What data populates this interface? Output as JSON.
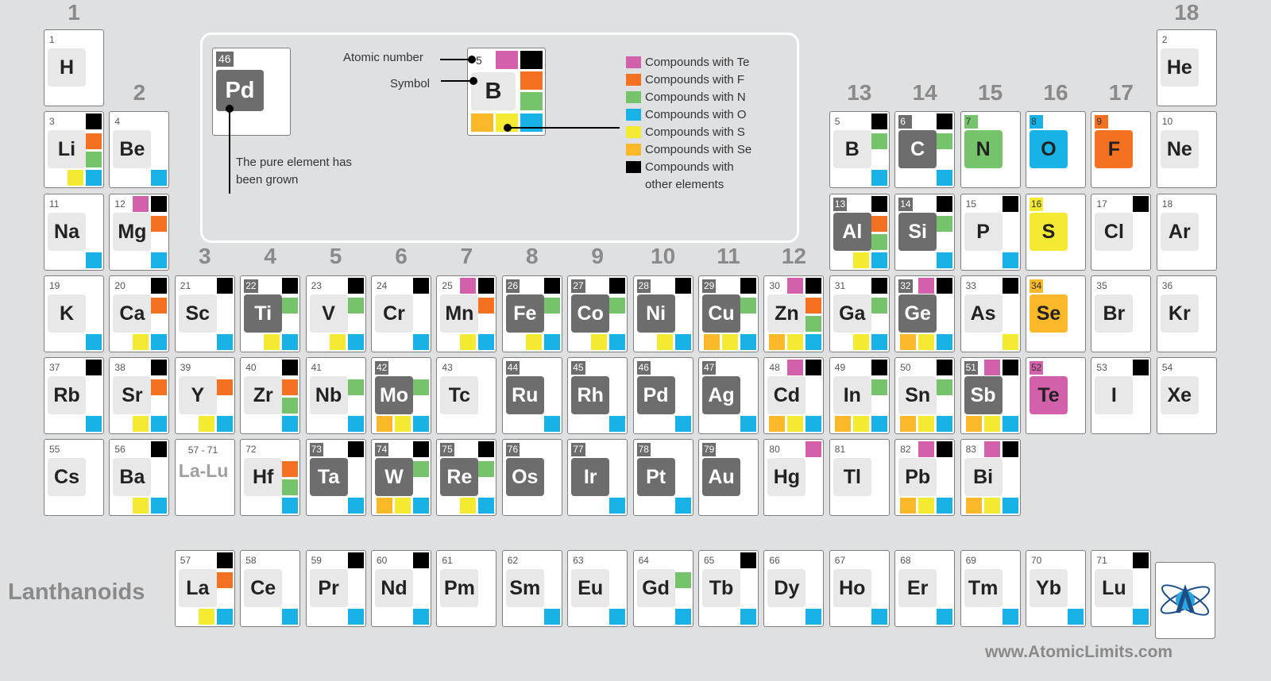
{
  "groups": [
    {
      "label": "1",
      "col": 1,
      "row": 0
    },
    {
      "label": "2",
      "col": 2,
      "row": 1
    },
    {
      "label": "3",
      "col": 3,
      "row": 3
    },
    {
      "label": "4",
      "col": 4,
      "row": 3
    },
    {
      "label": "5",
      "col": 5,
      "row": 3
    },
    {
      "label": "6",
      "col": 6,
      "row": 3
    },
    {
      "label": "7",
      "col": 7,
      "row": 3
    },
    {
      "label": "8",
      "col": 8,
      "row": 3
    },
    {
      "label": "9",
      "col": 9,
      "row": 3
    },
    {
      "label": "10",
      "col": 10,
      "row": 3
    },
    {
      "label": "11",
      "col": 11,
      "row": 3
    },
    {
      "label": "12",
      "col": 12,
      "row": 3
    },
    {
      "label": "13",
      "col": 13,
      "row": 1
    },
    {
      "label": "14",
      "col": 14,
      "row": 1
    },
    {
      "label": "15",
      "col": 15,
      "row": 1
    },
    {
      "label": "16",
      "col": 16,
      "row": 1
    },
    {
      "label": "17",
      "col": 17,
      "row": 1
    },
    {
      "label": "18",
      "col": 18,
      "row": 0
    }
  ],
  "colors": {
    "Te": "#d360aa",
    "F": "#f47121",
    "N": "#75c36a",
    "O": "#19b2e6",
    "S": "#f4ea32",
    "Se": "#fbb829",
    "other": "#000000"
  },
  "elements": [
    {
      "num": "1",
      "sym": "H",
      "row": 1,
      "col": 1,
      "tl": [],
      "r": [],
      "b": []
    },
    {
      "num": "2",
      "sym": "He",
      "row": 1,
      "col": 18,
      "tl": [],
      "r": [],
      "b": []
    },
    {
      "num": "3",
      "sym": "Li",
      "row": 2,
      "col": 1,
      "tl": [
        "X"
      ],
      "r": [
        "F",
        "N"
      ],
      "b": [
        "S",
        "O"
      ]
    },
    {
      "num": "4",
      "sym": "Be",
      "row": 2,
      "col": 2,
      "tl": [],
      "r": [],
      "b": [
        "O"
      ]
    },
    {
      "num": "5",
      "sym": "B",
      "row": 2,
      "col": 13,
      "tl": [
        "X"
      ],
      "r": [
        "N"
      ],
      "b": [
        "O"
      ]
    },
    {
      "num": "6",
      "sym": "C",
      "row": 2,
      "col": 14,
      "grown": true,
      "tl": [
        "X"
      ],
      "r": [
        "N"
      ],
      "b": [
        "O"
      ]
    },
    {
      "num": "7",
      "sym": "N",
      "row": 2,
      "col": 15,
      "hl": "N",
      "tl": [],
      "r": [],
      "b": []
    },
    {
      "num": "8",
      "sym": "O",
      "row": 2,
      "col": 16,
      "hl": "O",
      "tl": [],
      "r": [],
      "b": []
    },
    {
      "num": "9",
      "sym": "F",
      "row": 2,
      "col": 17,
      "hl": "F",
      "tl": [],
      "r": [],
      "b": []
    },
    {
      "num": "10",
      "sym": "Ne",
      "row": 2,
      "col": 18,
      "tl": [],
      "r": [],
      "b": []
    },
    {
      "num": "11",
      "sym": "Na",
      "row": 3,
      "col": 1,
      "tl": [],
      "r": [],
      "b": [
        "O"
      ]
    },
    {
      "num": "12",
      "sym": "Mg",
      "row": 3,
      "col": 2,
      "tl": [
        "Te",
        "X"
      ],
      "r": [
        "F"
      ],
      "b": [
        "O"
      ]
    },
    {
      "num": "13",
      "sym": "Al",
      "row": 3,
      "col": 13,
      "grown": true,
      "tl": [
        "X"
      ],
      "r": [
        "F",
        "N"
      ],
      "b": [
        "S",
        "O"
      ]
    },
    {
      "num": "14",
      "sym": "Si",
      "row": 3,
      "col": 14,
      "grown": true,
      "tl": [
        "X"
      ],
      "r": [
        "N"
      ],
      "b": [
        "O"
      ]
    },
    {
      "num": "15",
      "sym": "P",
      "row": 3,
      "col": 15,
      "tl": [
        "X"
      ],
      "r": [],
      "b": [
        "O"
      ]
    },
    {
      "num": "16",
      "sym": "S",
      "row": 3,
      "col": 16,
      "hl": "S",
      "tl": [],
      "r": [],
      "b": []
    },
    {
      "num": "17",
      "sym": "Cl",
      "row": 3,
      "col": 17,
      "tl": [
        "X"
      ],
      "r": [],
      "b": []
    },
    {
      "num": "18",
      "sym": "Ar",
      "row": 3,
      "col": 18,
      "tl": [],
      "r": [],
      "b": []
    },
    {
      "num": "19",
      "sym": "K",
      "row": 4,
      "col": 1,
      "tl": [],
      "r": [],
      "b": [
        "O"
      ]
    },
    {
      "num": "20",
      "sym": "Ca",
      "row": 4,
      "col": 2,
      "tl": [
        "X"
      ],
      "r": [
        "F"
      ],
      "b": [
        "S",
        "O"
      ]
    },
    {
      "num": "21",
      "sym": "Sc",
      "row": 4,
      "col": 3,
      "tl": [
        "X"
      ],
      "r": [],
      "b": [
        "O"
      ]
    },
    {
      "num": "22",
      "sym": "Ti",
      "row": 4,
      "col": 4,
      "grown": true,
      "tl": [
        "X"
      ],
      "r": [
        "N"
      ],
      "b": [
        "S",
        "O"
      ]
    },
    {
      "num": "23",
      "sym": "V",
      "row": 4,
      "col": 5,
      "tl": [
        "X"
      ],
      "r": [
        "N"
      ],
      "b": [
        "S",
        "O"
      ]
    },
    {
      "num": "24",
      "sym": "Cr",
      "row": 4,
      "col": 6,
      "tl": [
        "X"
      ],
      "r": [],
      "b": [
        "O"
      ]
    },
    {
      "num": "25",
      "sym": "Mn",
      "row": 4,
      "col": 7,
      "tl": [
        "Te",
        "X"
      ],
      "r": [
        "F"
      ],
      "b": [
        "S",
        "O"
      ]
    },
    {
      "num": "26",
      "sym": "Fe",
      "row": 4,
      "col": 8,
      "grown": true,
      "tl": [
        "X"
      ],
      "r": [
        "N"
      ],
      "b": [
        "S",
        "O"
      ]
    },
    {
      "num": "27",
      "sym": "Co",
      "row": 4,
      "col": 9,
      "grown": true,
      "tl": [
        "X"
      ],
      "r": [
        "N"
      ],
      "b": [
        "S",
        "O"
      ]
    },
    {
      "num": "28",
      "sym": "Ni",
      "row": 4,
      "col": 10,
      "grown": true,
      "tl": [
        "X"
      ],
      "r": [],
      "b": [
        "S",
        "O"
      ]
    },
    {
      "num": "29",
      "sym": "Cu",
      "row": 4,
      "col": 11,
      "grown": true,
      "tl": [
        "X"
      ],
      "r": [
        "N"
      ],
      "b": [
        "Se",
        "S",
        "O"
      ]
    },
    {
      "num": "30",
      "sym": "Zn",
      "row": 4,
      "col": 12,
      "tl": [
        "Te",
        "X"
      ],
      "r": [
        "F",
        "N"
      ],
      "b": [
        "Se",
        "S",
        "O"
      ]
    },
    {
      "num": "31",
      "sym": "Ga",
      "row": 4,
      "col": 13,
      "tl": [
        "X"
      ],
      "r": [
        "N"
      ],
      "b": [
        "S",
        "O"
      ]
    },
    {
      "num": "32",
      "sym": "Ge",
      "row": 4,
      "col": 14,
      "grown": true,
      "tl": [
        "Te",
        "X"
      ],
      "r": [],
      "b": [
        "Se",
        "S",
        "O"
      ]
    },
    {
      "num": "33",
      "sym": "As",
      "row": 4,
      "col": 15,
      "tl": [
        "X"
      ],
      "r": [],
      "b": [
        "S"
      ]
    },
    {
      "num": "34",
      "sym": "Se",
      "row": 4,
      "col": 16,
      "hl": "Se",
      "tl": [],
      "r": [],
      "b": []
    },
    {
      "num": "35",
      "sym": "Br",
      "row": 4,
      "col": 17,
      "tl": [],
      "r": [],
      "b": []
    },
    {
      "num": "36",
      "sym": "Kr",
      "row": 4,
      "col": 18,
      "tl": [],
      "r": [],
      "b": []
    },
    {
      "num": "37",
      "sym": "Rb",
      "row": 5,
      "col": 1,
      "tl": [
        "X"
      ],
      "r": [],
      "b": [
        "O"
      ]
    },
    {
      "num": "38",
      "sym": "Sr",
      "row": 5,
      "col": 2,
      "tl": [
        "X"
      ],
      "r": [
        "F"
      ],
      "b": [
        "S",
        "O"
      ]
    },
    {
      "num": "39",
      "sym": "Y",
      "row": 5,
      "col": 3,
      "tl": [],
      "r": [
        "F"
      ],
      "b": [
        "S",
        "O"
      ]
    },
    {
      "num": "40",
      "sym": "Zr",
      "row": 5,
      "col": 4,
      "tl": [
        "X"
      ],
      "r": [
        "F",
        "N"
      ],
      "b": [
        "O"
      ]
    },
    {
      "num": "41",
      "sym": "Nb",
      "row": 5,
      "col": 5,
      "tl": [],
      "r": [
        "N"
      ],
      "b": [
        "O"
      ]
    },
    {
      "num": "42",
      "sym": "Mo",
      "row": 5,
      "col": 6,
      "grown": true,
      "tl": [],
      "r": [
        "N"
      ],
      "b": [
        "Se",
        "S",
        "O"
      ]
    },
    {
      "num": "43",
      "sym": "Tc",
      "row": 5,
      "col": 7,
      "tl": [],
      "r": [],
      "b": []
    },
    {
      "num": "44",
      "sym": "Ru",
      "row": 5,
      "col": 8,
      "grown": true,
      "tl": [],
      "r": [],
      "b": [
        "O"
      ]
    },
    {
      "num": "45",
      "sym": "Rh",
      "row": 5,
      "col": 9,
      "grown": true,
      "tl": [],
      "r": [],
      "b": [
        "O"
      ]
    },
    {
      "num": "46",
      "sym": "Pd",
      "row": 5,
      "col": 10,
      "grown": true,
      "tl": [],
      "r": [],
      "b": [
        "O"
      ]
    },
    {
      "num": "47",
      "sym": "Ag",
      "row": 5,
      "col": 11,
      "grown": true,
      "tl": [],
      "r": [],
      "b": [
        "O"
      ]
    },
    {
      "num": "48",
      "sym": "Cd",
      "row": 5,
      "col": 12,
      "tl": [
        "Te",
        "X"
      ],
      "r": [],
      "b": [
        "Se",
        "S",
        "O"
      ]
    },
    {
      "num": "49",
      "sym": "In",
      "row": 5,
      "col": 13,
      "tl": [
        "X"
      ],
      "r": [
        "N"
      ],
      "b": [
        "Se",
        "S",
        "O"
      ]
    },
    {
      "num": "50",
      "sym": "Sn",
      "row": 5,
      "col": 14,
      "tl": [
        "X"
      ],
      "r": [
        "N"
      ],
      "b": [
        "Se",
        "S",
        "O"
      ]
    },
    {
      "num": "51",
      "sym": "Sb",
      "row": 5,
      "col": 15,
      "grown": true,
      "tl": [
        "Te",
        "X"
      ],
      "r": [],
      "b": [
        "Se",
        "S",
        "O"
      ]
    },
    {
      "num": "52",
      "sym": "Te",
      "row": 5,
      "col": 16,
      "hl": "Te",
      "tl": [],
      "r": [],
      "b": []
    },
    {
      "num": "53",
      "sym": "I",
      "row": 5,
      "col": 17,
      "tl": [
        "X"
      ],
      "r": [],
      "b": []
    },
    {
      "num": "54",
      "sym": "Xe",
      "row": 5,
      "col": 18,
      "tl": [],
      "r": [],
      "b": []
    },
    {
      "num": "55",
      "sym": "Cs",
      "row": 6,
      "col": 1,
      "tl": [],
      "r": [],
      "b": []
    },
    {
      "num": "56",
      "sym": "Ba",
      "row": 6,
      "col": 2,
      "tl": [
        "X"
      ],
      "r": [],
      "b": [
        "S",
        "O"
      ]
    },
    {
      "num": "72",
      "sym": "Hf",
      "row": 6,
      "col": 4,
      "tl": [],
      "r": [
        "F",
        "N"
      ],
      "b": [
        "O"
      ]
    },
    {
      "num": "73",
      "sym": "Ta",
      "row": 6,
      "col": 5,
      "grown": true,
      "tl": [
        "X"
      ],
      "r": [],
      "b": [
        "O"
      ]
    },
    {
      "num": "74",
      "sym": "W",
      "row": 6,
      "col": 6,
      "grown": true,
      "tl": [
        "X"
      ],
      "r": [
        "N"
      ],
      "b": [
        "Se",
        "S",
        "O"
      ]
    },
    {
      "num": "75",
      "sym": "Re",
      "row": 6,
      "col": 7,
      "grown": true,
      "tl": [
        "X"
      ],
      "r": [
        "N"
      ],
      "b": [
        "S",
        "O"
      ]
    },
    {
      "num": "76",
      "sym": "Os",
      "row": 6,
      "col": 8,
      "grown": true,
      "tl": [],
      "r": [],
      "b": []
    },
    {
      "num": "77",
      "sym": "Ir",
      "row": 6,
      "col": 9,
      "grown": true,
      "tl": [],
      "r": [],
      "b": [
        "O"
      ]
    },
    {
      "num": "78",
      "sym": "Pt",
      "row": 6,
      "col": 10,
      "grown": true,
      "tl": [],
      "r": [],
      "b": [
        "O"
      ]
    },
    {
      "num": "79",
      "sym": "Au",
      "row": 6,
      "col": 11,
      "grown": true,
      "tl": [],
      "r": [],
      "b": []
    },
    {
      "num": "80",
      "sym": "Hg",
      "row": 6,
      "col": 12,
      "tl": [
        "Te"
      ],
      "r": [],
      "b": []
    },
    {
      "num": "81",
      "sym": "Tl",
      "row": 6,
      "col": 13,
      "tl": [],
      "r": [],
      "b": []
    },
    {
      "num": "82",
      "sym": "Pb",
      "row": 6,
      "col": 14,
      "tl": [
        "Te",
        "X"
      ],
      "r": [],
      "b": [
        "Se",
        "S",
        "O"
      ]
    },
    {
      "num": "83",
      "sym": "Bi",
      "row": 6,
      "col": 15,
      "tl": [
        "Te",
        "X"
      ],
      "r": [],
      "b": [
        "Se",
        "S",
        "O"
      ]
    },
    {
      "num": "57",
      "sym": "La",
      "row": 7,
      "col": 3,
      "tl": [
        "X"
      ],
      "r": [
        "F"
      ],
      "b": [
        "S",
        "O"
      ]
    },
    {
      "num": "58",
      "sym": "Ce",
      "row": 7,
      "col": 4,
      "tl": [],
      "r": [],
      "b": [
        "O"
      ]
    },
    {
      "num": "59",
      "sym": "Pr",
      "row": 7,
      "col": 5,
      "tl": [
        "X"
      ],
      "r": [],
      "b": [
        "O"
      ]
    },
    {
      "num": "60",
      "sym": "Nd",
      "row": 7,
      "col": 6,
      "tl": [
        "X"
      ],
      "r": [],
      "b": [
        "O"
      ]
    },
    {
      "num": "61",
      "sym": "Pm",
      "row": 7,
      "col": 7,
      "tl": [],
      "r": [],
      "b": []
    },
    {
      "num": "62",
      "sym": "Sm",
      "row": 7,
      "col": 8,
      "tl": [],
      "r": [],
      "b": [
        "O"
      ]
    },
    {
      "num": "63",
      "sym": "Eu",
      "row": 7,
      "col": 9,
      "tl": [],
      "r": [],
      "b": [
        "O"
      ]
    },
    {
      "num": "64",
      "sym": "Gd",
      "row": 7,
      "col": 10,
      "tl": [],
      "r": [
        "N"
      ],
      "b": [
        "O"
      ]
    },
    {
      "num": "65",
      "sym": "Tb",
      "row": 7,
      "col": 11,
      "tl": [
        "X"
      ],
      "r": [],
      "b": [
        "O"
      ]
    },
    {
      "num": "66",
      "sym": "Dy",
      "row": 7,
      "col": 12,
      "tl": [],
      "r": [],
      "b": [
        "O"
      ]
    },
    {
      "num": "67",
      "sym": "Ho",
      "row": 7,
      "col": 13,
      "tl": [],
      "r": [],
      "b": [
        "O"
      ]
    },
    {
      "num": "68",
      "sym": "Er",
      "row": 7,
      "col": 14,
      "tl": [],
      "r": [],
      "b": [
        "O"
      ]
    },
    {
      "num": "69",
      "sym": "Tm",
      "row": 7,
      "col": 15,
      "tl": [],
      "r": [],
      "b": [
        "O"
      ]
    },
    {
      "num": "70",
      "sym": "Yb",
      "row": 7,
      "col": 16,
      "tl": [],
      "r": [],
      "b": [
        "O"
      ]
    },
    {
      "num": "71",
      "sym": "Lu",
      "row": 7,
      "col": 17,
      "tl": [
        "X"
      ],
      "r": [],
      "b": [
        "O"
      ]
    }
  ],
  "la_lu": {
    "num": "57 - 71",
    "sym": "La-Lu"
  },
  "lanthanoids_label": "Lanthanoids",
  "website": "www.AtomicLimits.com",
  "legend": {
    "example_grown_num": "46",
    "example_grown_sym": "Pd",
    "grown_note_line1": "The pure element has",
    "grown_note_line2": "been grown",
    "atomic_number_label": "Atomic number",
    "symbol_label": "Symbol",
    "example_num": "5",
    "example_sym": "B",
    "items": [
      {
        "key": "Te",
        "text": "Compounds with Te"
      },
      {
        "key": "F",
        "text": "Compounds with F"
      },
      {
        "key": "N",
        "text": "Compounds with N"
      },
      {
        "key": "O",
        "text": "Compounds with O"
      },
      {
        "key": "S",
        "text": "Compounds with S"
      },
      {
        "key": "Se",
        "text": "Compounds with Se"
      },
      {
        "key": "other",
        "text": "Compounds with"
      }
    ],
    "other_line2": "other elements"
  }
}
